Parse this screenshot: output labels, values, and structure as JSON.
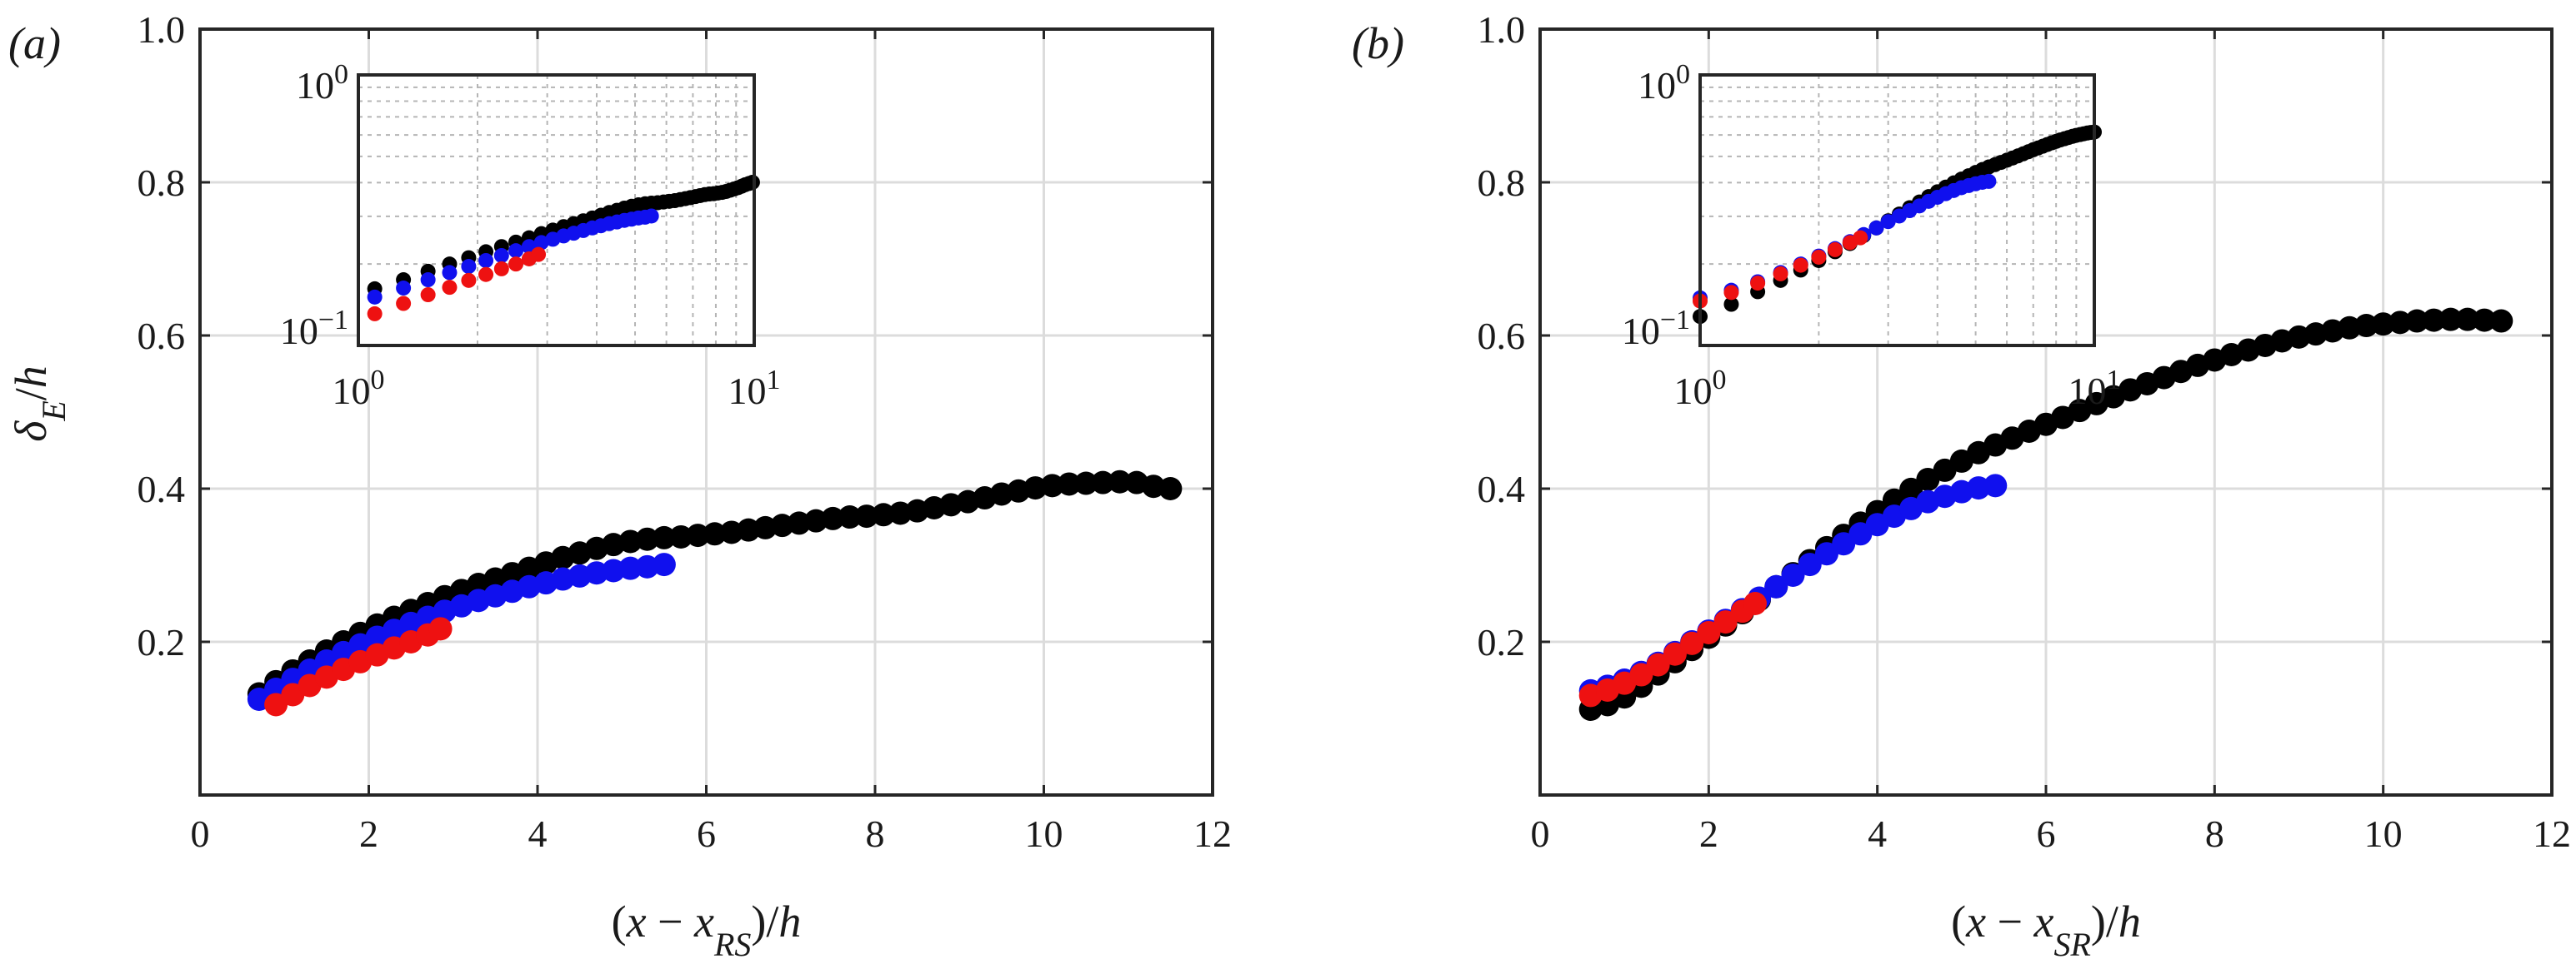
{
  "colors": {
    "black": "#000000",
    "blue": "#1010ee",
    "red": "#ee1111"
  },
  "chart_data": [
    {
      "type": "scatter",
      "panel_label": "(a)",
      "ylabel": "δE/h",
      "xlabel": "(x − xRS)/h",
      "xlim": [
        0,
        12
      ],
      "ylim": [
        0,
        1
      ],
      "xticks": [
        "0",
        "2",
        "4",
        "6",
        "8",
        "10",
        "12"
      ],
      "yticks": [
        "0.2",
        "0.4",
        "0.6",
        "0.8",
        "1.0"
      ],
      "grid": true,
      "series": [
        {
          "name": "black",
          "color": "#000000",
          "points": [
            [
              0.7,
              0.132
            ],
            [
              0.9,
              0.148
            ],
            [
              1.1,
              0.162
            ],
            [
              1.3,
              0.175
            ],
            [
              1.5,
              0.188
            ],
            [
              1.7,
              0.2
            ],
            [
              1.9,
              0.211
            ],
            [
              2.1,
              0.222
            ],
            [
              2.3,
              0.232
            ],
            [
              2.5,
              0.241
            ],
            [
              2.7,
              0.25
            ],
            [
              2.9,
              0.259
            ],
            [
              3.1,
              0.267
            ],
            [
              3.3,
              0.275
            ],
            [
              3.5,
              0.282
            ],
            [
              3.7,
              0.289
            ],
            [
              3.9,
              0.296
            ],
            [
              4.1,
              0.303
            ],
            [
              4.3,
              0.31
            ],
            [
              4.5,
              0.316
            ],
            [
              4.7,
              0.322
            ],
            [
              4.9,
              0.327
            ],
            [
              5.1,
              0.331
            ],
            [
              5.3,
              0.334
            ],
            [
              5.5,
              0.336
            ],
            [
              5.7,
              0.337
            ],
            [
              5.9,
              0.339
            ],
            [
              6.1,
              0.341
            ],
            [
              6.3,
              0.343
            ],
            [
              6.5,
              0.346
            ],
            [
              6.7,
              0.349
            ],
            [
              6.9,
              0.352
            ],
            [
              7.1,
              0.355
            ],
            [
              7.3,
              0.358
            ],
            [
              7.5,
              0.361
            ],
            [
              7.7,
              0.363
            ],
            [
              7.9,
              0.364
            ],
            [
              8.1,
              0.366
            ],
            [
              8.3,
              0.368
            ],
            [
              8.5,
              0.371
            ],
            [
              8.7,
              0.375
            ],
            [
              8.9,
              0.379
            ],
            [
              9.1,
              0.383
            ],
            [
              9.3,
              0.388
            ],
            [
              9.5,
              0.393
            ],
            [
              9.7,
              0.397
            ],
            [
              9.9,
              0.401
            ],
            [
              10.1,
              0.404
            ],
            [
              10.3,
              0.406
            ],
            [
              10.5,
              0.407
            ],
            [
              10.7,
              0.408
            ],
            [
              10.9,
              0.409
            ],
            [
              11.1,
              0.408
            ],
            [
              11.3,
              0.403
            ],
            [
              11.5,
              0.4
            ]
          ]
        },
        {
          "name": "blue",
          "color": "#1010ee",
          "points": [
            [
              0.7,
              0.125
            ],
            [
              0.9,
              0.138
            ],
            [
              1.1,
              0.151
            ],
            [
              1.3,
              0.163
            ],
            [
              1.5,
              0.175
            ],
            [
              1.7,
              0.186
            ],
            [
              1.9,
              0.196
            ],
            [
              2.1,
              0.206
            ],
            [
              2.3,
              0.215
            ],
            [
              2.5,
              0.224
            ],
            [
              2.7,
              0.232
            ],
            [
              2.9,
              0.24
            ],
            [
              3.1,
              0.247
            ],
            [
              3.3,
              0.254
            ],
            [
              3.5,
              0.26
            ],
            [
              3.7,
              0.266
            ],
            [
              3.9,
              0.272
            ],
            [
              4.1,
              0.277
            ],
            [
              4.3,
              0.282
            ],
            [
              4.5,
              0.286
            ],
            [
              4.7,
              0.29
            ],
            [
              4.9,
              0.293
            ],
            [
              5.1,
              0.296
            ],
            [
              5.3,
              0.298
            ],
            [
              5.5,
              0.301
            ]
          ]
        },
        {
          "name": "red",
          "color": "#ee1111",
          "points": [
            [
              0.9,
              0.118
            ],
            [
              1.1,
              0.131
            ],
            [
              1.3,
              0.143
            ],
            [
              1.5,
              0.154
            ],
            [
              1.7,
              0.164
            ],
            [
              1.9,
              0.174
            ],
            [
              2.1,
              0.183
            ],
            [
              2.3,
              0.192
            ],
            [
              2.5,
              0.2
            ],
            [
              2.7,
              0.209
            ],
            [
              2.85,
              0.217
            ]
          ]
        }
      ],
      "inset": {
        "type": "scatter",
        "xscale": "log",
        "yscale": "log",
        "xlim": [
          1,
          10
        ],
        "ylim": [
          0.1,
          1
        ],
        "xticks": [
          {
            "base": "10",
            "exp": "0"
          },
          {
            "base": "10",
            "exp": "1"
          }
        ],
        "yticks": [
          {
            "base": "10",
            "exp": "−1"
          },
          {
            "base": "10",
            "exp": "0"
          }
        ]
      }
    },
    {
      "type": "scatter",
      "panel_label": "(b)",
      "ylabel": "",
      "xlabel": "(x − xSR)/h",
      "xlim": [
        0,
        12
      ],
      "ylim": [
        0,
        1
      ],
      "xticks": [
        "0",
        "2",
        "4",
        "6",
        "8",
        "10",
        "12"
      ],
      "yticks": [
        "0.2",
        "0.4",
        "0.6",
        "0.8",
        "1.0"
      ],
      "grid": true,
      "series": [
        {
          "name": "black",
          "color": "#000000",
          "points": [
            [
              0.6,
              0.112
            ],
            [
              0.8,
              0.118
            ],
            [
              1.0,
              0.128
            ],
            [
              1.2,
              0.142
            ],
            [
              1.4,
              0.158
            ],
            [
              1.6,
              0.174
            ],
            [
              1.8,
              0.19
            ],
            [
              2.0,
              0.206
            ],
            [
              2.2,
              0.222
            ],
            [
              2.4,
              0.238
            ],
            [
              2.6,
              0.255
            ],
            [
              2.8,
              0.272
            ],
            [
              3.0,
              0.289
            ],
            [
              3.2,
              0.306
            ],
            [
              3.4,
              0.323
            ],
            [
              3.6,
              0.339
            ],
            [
              3.8,
              0.355
            ],
            [
              4.0,
              0.37
            ],
            [
              4.2,
              0.385
            ],
            [
              4.4,
              0.399
            ],
            [
              4.6,
              0.412
            ],
            [
              4.8,
              0.424
            ],
            [
              5.0,
              0.436
            ],
            [
              5.2,
              0.447
            ],
            [
              5.4,
              0.457
            ],
            [
              5.6,
              0.466
            ],
            [
              5.8,
              0.475
            ],
            [
              6.0,
              0.484
            ],
            [
              6.2,
              0.493
            ],
            [
              6.4,
              0.502
            ],
            [
              6.6,
              0.511
            ],
            [
              6.8,
              0.52
            ],
            [
              7.0,
              0.529
            ],
            [
              7.2,
              0.537
            ],
            [
              7.4,
              0.545
            ],
            [
              7.6,
              0.553
            ],
            [
              7.8,
              0.561
            ],
            [
              8.0,
              0.568
            ],
            [
              8.2,
              0.575
            ],
            [
              8.4,
              0.581
            ],
            [
              8.6,
              0.587
            ],
            [
              8.8,
              0.593
            ],
            [
              9.0,
              0.598
            ],
            [
              9.2,
              0.602
            ],
            [
              9.4,
              0.606
            ],
            [
              9.6,
              0.61
            ],
            [
              9.8,
              0.613
            ],
            [
              10.0,
              0.615
            ],
            [
              10.2,
              0.617
            ],
            [
              10.4,
              0.619
            ],
            [
              10.6,
              0.62
            ],
            [
              10.8,
              0.621
            ],
            [
              11.0,
              0.621
            ],
            [
              11.2,
              0.62
            ],
            [
              11.4,
              0.619
            ]
          ]
        },
        {
          "name": "blue",
          "color": "#1010ee",
          "points": [
            [
              0.6,
              0.136
            ],
            [
              0.8,
              0.142
            ],
            [
              1.0,
              0.15
            ],
            [
              1.2,
              0.16
            ],
            [
              1.4,
              0.172
            ],
            [
              1.6,
              0.186
            ],
            [
              1.8,
              0.2
            ],
            [
              2.0,
              0.214
            ],
            [
              2.2,
              0.228
            ],
            [
              2.4,
              0.242
            ],
            [
              2.6,
              0.257
            ],
            [
              2.8,
              0.272
            ],
            [
              3.0,
              0.287
            ],
            [
              3.2,
              0.301
            ],
            [
              3.4,
              0.315
            ],
            [
              3.6,
              0.328
            ],
            [
              3.8,
              0.341
            ],
            [
              4.0,
              0.353
            ],
            [
              4.2,
              0.364
            ],
            [
              4.4,
              0.374
            ],
            [
              4.6,
              0.383
            ],
            [
              4.8,
              0.39
            ],
            [
              5.0,
              0.396
            ],
            [
              5.2,
              0.401
            ],
            [
              5.4,
              0.404
            ]
          ]
        },
        {
          "name": "red",
          "color": "#ee1111",
          "points": [
            [
              0.6,
              0.13
            ],
            [
              0.8,
              0.137
            ],
            [
              1.0,
              0.146
            ],
            [
              1.2,
              0.157
            ],
            [
              1.4,
              0.17
            ],
            [
              1.6,
              0.184
            ],
            [
              1.8,
              0.198
            ],
            [
              2.0,
              0.212
            ],
            [
              2.2,
              0.226
            ],
            [
              2.4,
              0.24
            ],
            [
              2.55,
              0.25
            ]
          ]
        }
      ],
      "inset": {
        "type": "scatter",
        "xscale": "log",
        "yscale": "log",
        "xlim": [
          1,
          10
        ],
        "ylim": [
          0.1,
          1
        ],
        "xticks": [
          {
            "base": "10",
            "exp": "0"
          },
          {
            "base": "10",
            "exp": "1"
          }
        ],
        "yticks": [
          {
            "base": "10",
            "exp": "−1"
          },
          {
            "base": "10",
            "exp": "0"
          }
        ]
      }
    }
  ]
}
